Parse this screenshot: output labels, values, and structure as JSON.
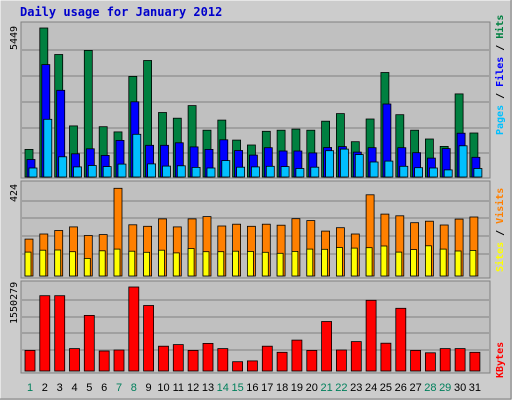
{
  "title": "Daily usage for January 2012",
  "colors": {
    "title": "#0000cc",
    "background": "#c0c0c0",
    "outer_background": "#cccccc",
    "hits": "#008040",
    "files": "#0000ff",
    "pages": "#00c0ff",
    "visits": "#ff8000",
    "sites": "#ffff00",
    "kbytes": "#ff0000",
    "weekday_label": "#000000",
    "weekend_label": "#00805c"
  },
  "chart_data": [
    {
      "type": "bar",
      "name": "hits-files-pages",
      "ymax_label": "5449",
      "ylim": [
        0,
        5449
      ],
      "categories": [
        "1",
        "2",
        "3",
        "4",
        "5",
        "6",
        "7",
        "8",
        "9",
        "10",
        "11",
        "12",
        "13",
        "14",
        "15",
        "16",
        "17",
        "18",
        "19",
        "20",
        "21",
        "22",
        "23",
        "24",
        "25",
        "26",
        "27",
        "28",
        "29",
        "30",
        "31"
      ],
      "series": [
        {
          "name": "Hits",
          "values": [
            1010,
            5449,
            4480,
            1870,
            4630,
            1840,
            1650,
            3680,
            4260,
            2360,
            2150,
            2610,
            1710,
            2080,
            1350,
            1170,
            1670,
            1710,
            1750,
            1710,
            2040,
            2320,
            1290,
            2120,
            3820,
            2280,
            1710,
            1390,
            1120,
            3040,
            1610
          ]
        },
        {
          "name": "Files",
          "values": [
            640,
            4110,
            3170,
            850,
            1030,
            790,
            1340,
            2750,
            1160,
            1160,
            1250,
            1100,
            1010,
            1360,
            970,
            800,
            1070,
            950,
            950,
            880,
            1080,
            1110,
            910,
            1070,
            2670,
            1070,
            890,
            690,
            1040,
            1600,
            720
          ]
        },
        {
          "name": "Pages",
          "values": [
            330,
            2110,
            740,
            370,
            420,
            380,
            470,
            1560,
            480,
            400,
            410,
            350,
            330,
            600,
            360,
            370,
            390,
            380,
            310,
            360,
            960,
            1020,
            820,
            550,
            580,
            390,
            340,
            330,
            260,
            1140,
            310
          ]
        }
      ],
      "legend": [
        "Pages",
        "Files",
        "Hits"
      ]
    },
    {
      "type": "bar",
      "name": "visits-sites",
      "ymax_label": "424",
      "ylim": [
        0,
        424
      ],
      "categories": [
        "1",
        "2",
        "3",
        "4",
        "5",
        "6",
        "7",
        "8",
        "9",
        "10",
        "11",
        "12",
        "13",
        "14",
        "15",
        "16",
        "17",
        "18",
        "19",
        "20",
        "21",
        "22",
        "23",
        "24",
        "25",
        "26",
        "27",
        "28",
        "29",
        "30",
        "31"
      ],
      "series": [
        {
          "name": "Visits",
          "values": [
            176,
            200,
            217,
            234,
            193,
            197,
            418,
            244,
            237,
            272,
            234,
            272,
            283,
            238,
            247,
            237,
            247,
            242,
            273,
            264,
            214,
            230,
            200,
            387,
            295,
            287,
            254,
            261,
            243,
            271,
            281
          ]
        },
        {
          "name": "Sites",
          "values": [
            114,
            123,
            124,
            116,
            84,
            120,
            128,
            118,
            113,
            123,
            110,
            131,
            116,
            116,
            118,
            117,
            113,
            108,
            117,
            128,
            127,
            136,
            133,
            135,
            143,
            114,
            126,
            144,
            128,
            119,
            122
          ]
        }
      ],
      "legend": [
        "Sites",
        "Visits"
      ]
    },
    {
      "type": "bar",
      "name": "kbytes",
      "ymax_label": "1550279",
      "ylim": [
        0,
        1550279
      ],
      "categories": [
        "1",
        "2",
        "3",
        "4",
        "5",
        "6",
        "7",
        "8",
        "9",
        "10",
        "11",
        "12",
        "13",
        "14",
        "15",
        "16",
        "17",
        "18",
        "19",
        "20",
        "21",
        "22",
        "23",
        "24",
        "25",
        "26",
        "27",
        "28",
        "29",
        "30",
        "31"
      ],
      "series": [
        {
          "name": "KBytes",
          "values": [
            380000,
            1390000,
            1390000,
            413000,
            1027000,
            370000,
            387000,
            1550279,
            1209000,
            458000,
            488000,
            380000,
            509000,
            413000,
            171000,
            186000,
            458000,
            346000,
            571000,
            380000,
            913000,
            387000,
            542000,
            1304000,
            513000,
            1157000,
            380000,
            336000,
            413000,
            413000,
            346000
          ]
        }
      ],
      "legend": [
        "KBytes"
      ]
    }
  ],
  "legends": {
    "top": [
      {
        "text": "Pages",
        "color": "#00c0ff"
      },
      {
        "text": " / ",
        "color": "#000000"
      },
      {
        "text": "Files",
        "color": "#0000ff"
      },
      {
        "text": " / ",
        "color": "#000000"
      },
      {
        "text": "Hits",
        "color": "#008040"
      }
    ],
    "middle": [
      {
        "text": "Sites",
        "color": "#ffff00"
      },
      {
        "text": " / ",
        "color": "#000000"
      },
      {
        "text": "Visits",
        "color": "#ff8000"
      }
    ],
    "bottom": [
      {
        "text": "KBytes",
        "color": "#ff0000"
      }
    ]
  },
  "weekend_days": [
    1,
    7,
    8,
    14,
    15,
    21,
    22,
    28,
    29
  ]
}
